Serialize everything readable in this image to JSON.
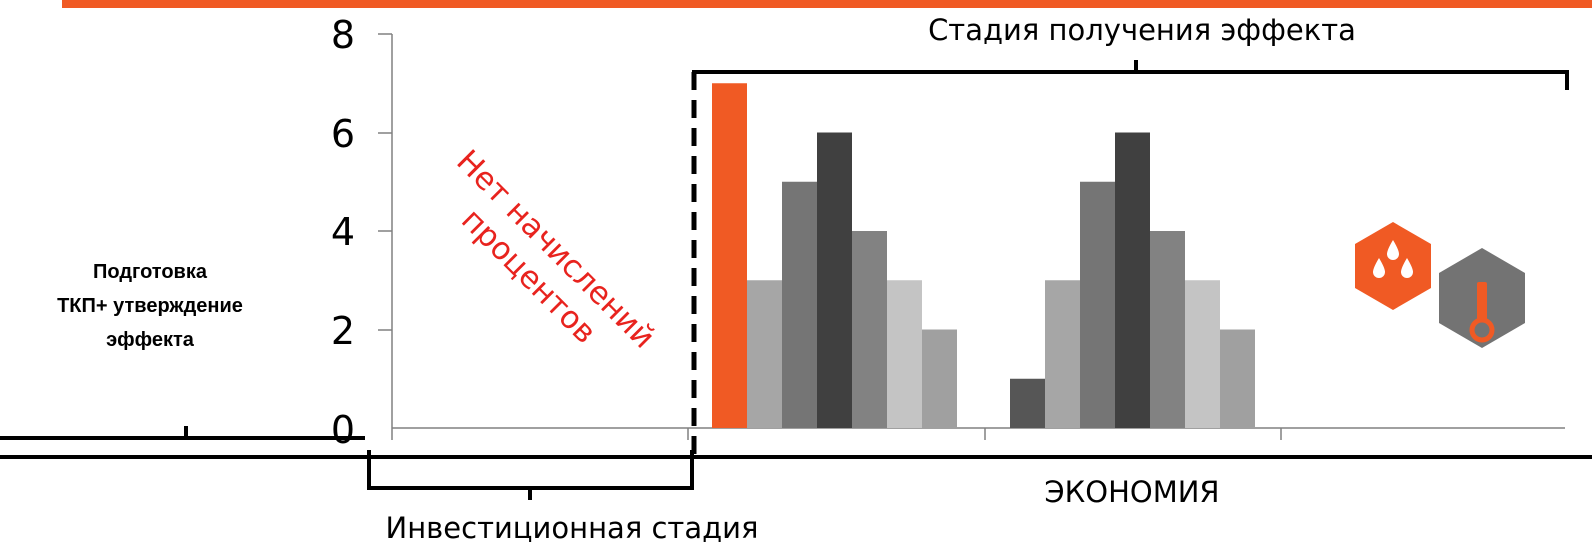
{
  "colors": {
    "accent": "#f05a24",
    "note": "#e8231e",
    "icon_gray": "#737373",
    "bar_shades": [
      "#a6a6a6",
      "#757575",
      "#404040",
      "#828282",
      "#c4c4c4",
      "#a0a0a0"
    ],
    "bar_dark": "#565656"
  },
  "chart_data": {
    "type": "bar",
    "ylim": [
      0,
      8
    ],
    "y_ticks": [
      "0",
      "2",
      "4",
      "6",
      "8"
    ],
    "x_categories": 4,
    "series_values": [
      {
        "group": 1,
        "values": [
          7,
          3,
          5,
          6,
          4,
          3,
          2
        ]
      },
      {
        "group": 2,
        "values": [
          1,
          3,
          5,
          6,
          4,
          3,
          2
        ]
      }
    ],
    "grid": false,
    "legend": "none"
  },
  "annotations": {
    "effect_stage": "Стадия получения эффекта",
    "no_interest_line1": "Нет начислений",
    "no_interest_line2": "процентов",
    "prep_line1": "Подготовка",
    "prep_line2": "ТКП+ утверждение",
    "prep_line3": "эффекта",
    "investment_stage": "Инвестиционная стадия",
    "savings": "ЭКОНОМИЯ"
  },
  "icons": [
    "water-drops-icon",
    "thermometer-icon"
  ]
}
